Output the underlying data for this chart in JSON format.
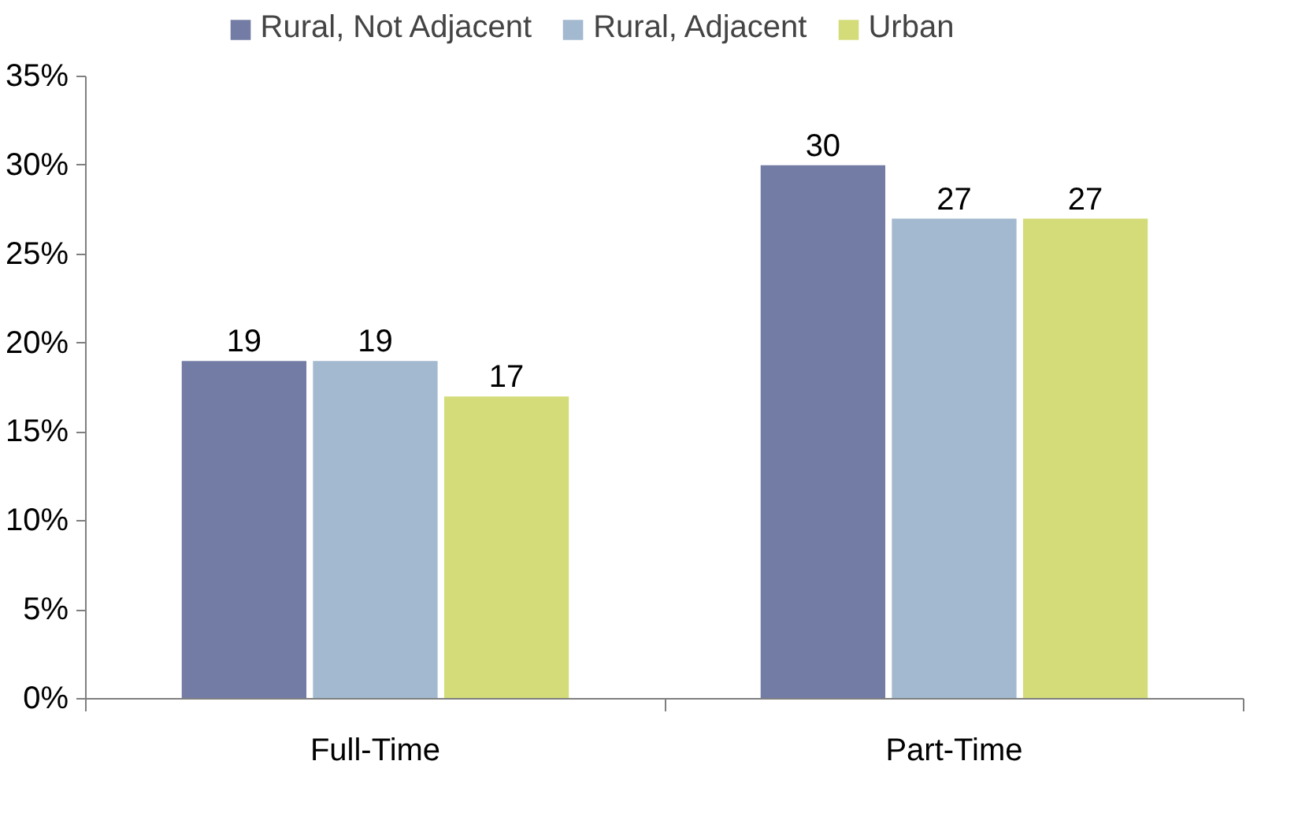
{
  "chart_data": {
    "type": "bar",
    "categories": [
      "Full-Time",
      "Part-Time"
    ],
    "series": [
      {
        "name": "Rural, Not Adjacent",
        "color": "#737ca5",
        "values": [
          19,
          30
        ]
      },
      {
        "name": "Rural, Adjacent",
        "color": "#a3b9cf",
        "values": [
          19,
          27
        ]
      },
      {
        "name": "Urban",
        "color": "#d4dc7a",
        "values": [
          17,
          27
        ]
      }
    ],
    "ylim": [
      0,
      35
    ],
    "yticks": [
      {
        "value": 0,
        "label": "0%"
      },
      {
        "value": 5,
        "label": "5%"
      },
      {
        "value": 10,
        "label": "10%"
      },
      {
        "value": 15,
        "label": "15%"
      },
      {
        "value": 20,
        "label": "20%"
      },
      {
        "value": 25,
        "label": "25%"
      },
      {
        "value": 30,
        "label": "30%"
      },
      {
        "value": 35,
        "label": "35%"
      }
    ],
    "data_labels": true,
    "grid": false,
    "legend": "top"
  }
}
